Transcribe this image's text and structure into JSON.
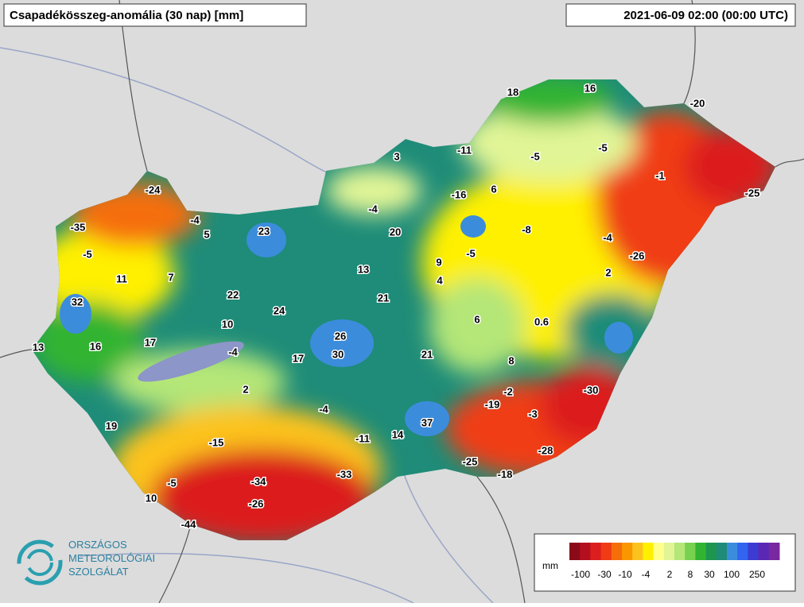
{
  "header": {
    "title": "Csapadékösszeg-anomália (30 nap) [mm]",
    "timestamp": "2021-06-09 02:00 (00:00 UTC)"
  },
  "station_values": [
    18,
    16,
    -20,
    3,
    -11,
    -5,
    -5,
    -1,
    -25,
    -24,
    -16,
    6,
    -4,
    -35,
    -4,
    5,
    23,
    20,
    -8,
    -4,
    -5,
    9,
    -5,
    -26,
    13,
    11,
    7,
    4,
    2,
    32,
    22,
    21,
    24,
    10,
    6,
    0.6,
    26,
    13,
    16,
    17,
    -4,
    17,
    30,
    21,
    8,
    2,
    -2,
    -30,
    -19,
    -3,
    -4,
    19,
    37,
    14,
    -11,
    -15,
    -28,
    -25,
    -18,
    -33,
    -34,
    -5,
    10,
    -26,
    -44
  ],
  "legend": {
    "unit": "mm",
    "colors": [
      "#8b0a1a",
      "#b40f1e",
      "#dc1e1e",
      "#f03c14",
      "#f56e0a",
      "#fa9600",
      "#fcc31e",
      "#fff000",
      "#ffff8c",
      "#e1f596",
      "#b4e678",
      "#78d250",
      "#32b432",
      "#1e9650",
      "#1e8c78",
      "#3c8cdc",
      "#3264f0",
      "#3c3cd2",
      "#5a28b4",
      "#7828a0"
    ],
    "labels": [
      -100,
      -30,
      -10,
      -4,
      2,
      8,
      30,
      100,
      250
    ]
  },
  "logo": {
    "lines": [
      "ORSZÁGOS",
      "METEOROLÓGIAI",
      "SZOLGÁLAT"
    ]
  }
}
